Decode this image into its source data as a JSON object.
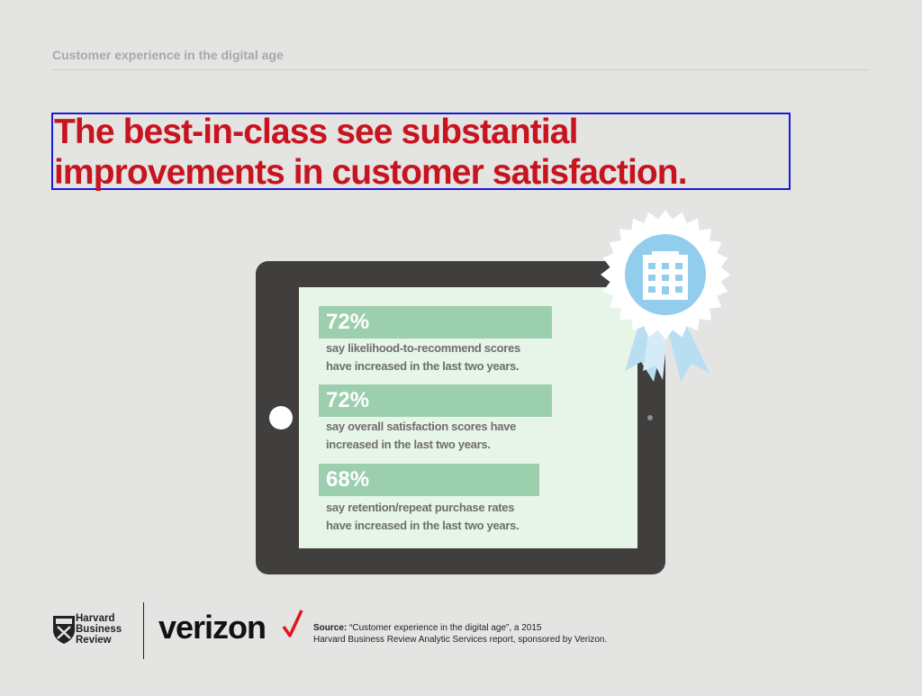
{
  "header": {
    "label": "Customer experience in the digital age"
  },
  "headline": {
    "line1": "The best-in-class see substantial",
    "line2": "improvements in customer satisfaction."
  },
  "stats": [
    {
      "percent": "72%",
      "value": 72,
      "line1": "say likelihood-to-recommend scores",
      "line2": "have increased in the last two years."
    },
    {
      "percent": "72%",
      "value": 72,
      "line1": "say overall satisfaction scores have",
      "line2": "increased in the last two years."
    },
    {
      "percent": "68%",
      "value": 68,
      "line1": "say retention/repeat purchase rates",
      "line2": "have increased in the last two years."
    }
  ],
  "badge": {
    "icon": "building-icon"
  },
  "footer": {
    "hbr": {
      "line1": "Harvard",
      "line2": "Business",
      "line3": "Review",
      "icon": "hbr-shield-icon"
    },
    "verizon": {
      "wordmark": "verizon",
      "icon": "checkmark-icon"
    },
    "source": {
      "label": "Source:",
      "text1": "“Customer experience in the digital age”, a 2015",
      "text2": "Harvard Business Review Analytic Services report, sponsored by Verizon."
    }
  },
  "colors": {
    "headline": "#c8141e",
    "stat_bar": "#9ccfae",
    "screen": "#e6f5e8",
    "tablet": "#403f3d",
    "badge": "#93cdee"
  }
}
